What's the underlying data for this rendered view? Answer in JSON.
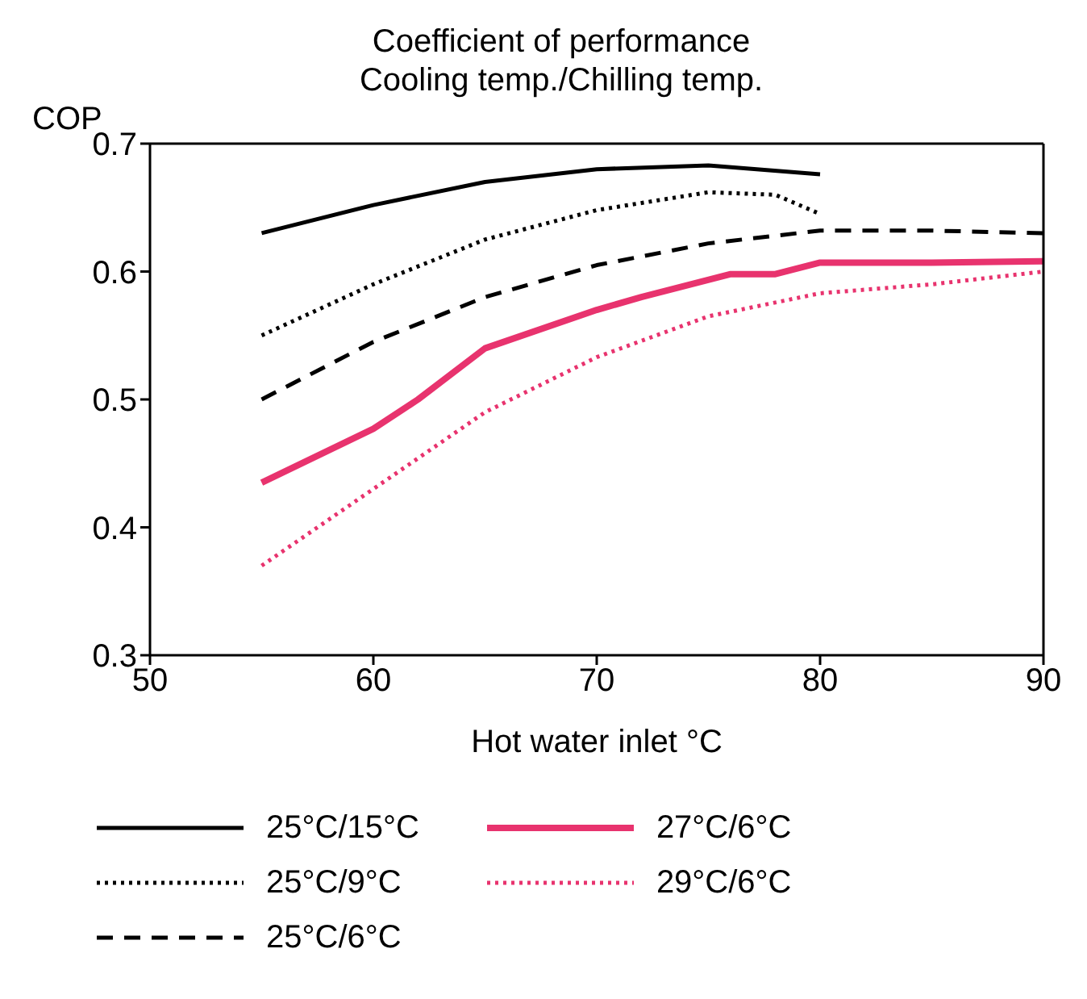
{
  "chart_data": {
    "type": "line",
    "title": "Coefficient of performance\nCooling temp./Chilling temp.",
    "xlabel": "Hot water inlet °C",
    "ylabel": "COP",
    "xlim": [
      50,
      90
    ],
    "xticks": [
      50,
      60,
      70,
      80,
      90
    ],
    "ylim": [
      0.3,
      0.7
    ],
    "yticks": [
      0.3,
      0.4,
      0.5,
      0.6,
      0.7
    ],
    "grid": false,
    "legend": "bottom",
    "marker": "none",
    "series": [
      {
        "name": "25°C/15°C",
        "color": "#000000",
        "line_style": "solid",
        "x": [
          55,
          60,
          65,
          70,
          75,
          80
        ],
        "values": [
          0.63,
          0.652,
          0.67,
          0.68,
          0.683,
          0.676
        ]
      },
      {
        "name": "25°C/9°C",
        "color": "#000000",
        "line_style": "dotted",
        "x": [
          55,
          60,
          65,
          70,
          75,
          78,
          80
        ],
        "values": [
          0.55,
          0.59,
          0.625,
          0.648,
          0.662,
          0.66,
          0.645
        ]
      },
      {
        "name": "25°C/6°C",
        "color": "#000000",
        "line_style": "dashed",
        "x": [
          55,
          60,
          65,
          70,
          75,
          80,
          85,
          90
        ],
        "values": [
          0.5,
          0.545,
          0.58,
          0.605,
          0.622,
          0.632,
          0.632,
          0.63
        ]
      },
      {
        "name": "27°C/6°C",
        "color": "#e8336e",
        "line_style": "solid",
        "x": [
          55,
          60,
          62,
          65,
          70,
          72,
          76,
          78,
          80,
          85,
          90
        ],
        "values": [
          0.435,
          0.477,
          0.5,
          0.54,
          0.57,
          0.58,
          0.598,
          0.598,
          0.607,
          0.607,
          0.608
        ]
      },
      {
        "name": "29°C/6°C",
        "color": "#e8336e",
        "line_style": "dotted",
        "x": [
          55,
          60,
          65,
          70,
          75,
          80,
          85,
          90
        ],
        "values": [
          0.37,
          0.43,
          0.49,
          0.533,
          0.565,
          0.583,
          0.59,
          0.6
        ]
      }
    ]
  }
}
